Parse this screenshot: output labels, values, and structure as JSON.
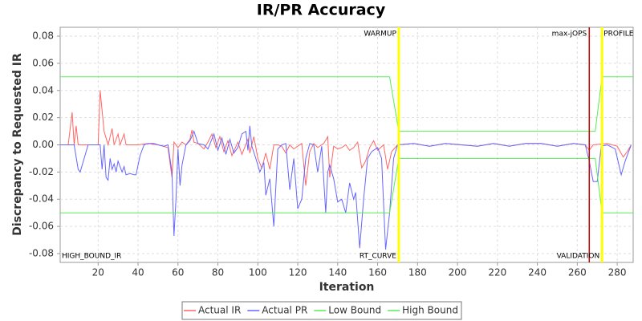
{
  "chart_data": {
    "type": "line",
    "title": "IR/PR Accuracy",
    "x_label": "Iteration",
    "y_label": "Discrepancy to Requested IR",
    "xlim": [
      1,
      288
    ],
    "ylim": [
      -0.0865,
      0.0865
    ],
    "xticks": [
      20,
      40,
      60,
      80,
      100,
      120,
      140,
      160,
      180,
      200,
      220,
      240,
      260,
      280
    ],
    "yticks": [
      -0.08,
      -0.06,
      -0.04,
      -0.02,
      {
        "value": 0,
        "label": "0.00"
      },
      0.02,
      0.04,
      0.06,
      0.08
    ],
    "grid": true,
    "markers": [
      {
        "x": 170.6,
        "color": "#ffff00"
      },
      {
        "x": 266,
        "color": "#cc0000"
      },
      {
        "x": 272.4,
        "color": "#ffff00"
      }
    ],
    "annotations": [
      {
        "text": "WARMUP",
        "x": 170.6,
        "anchor": "top",
        "side": "left"
      },
      {
        "text": "RT_CURVE",
        "x": 170.6,
        "anchor": "bottom",
        "side": "left"
      },
      {
        "text": "max-jOPS",
        "x": 266,
        "anchor": "top",
        "side": "left"
      },
      {
        "text": "VALIDATION",
        "x": 272.4,
        "anchor": "bottom",
        "side": "left"
      },
      {
        "text": "PROFILE",
        "x": 272.4,
        "anchor": "top",
        "side": "right"
      },
      {
        "text": "HIGH_BOUND_IR",
        "x": 1,
        "anchor": "bottom",
        "side": "right"
      }
    ],
    "series": [
      {
        "name": "Actual IR",
        "color": "#ff6666",
        "x": [
          1,
          5,
          7,
          8,
          9,
          10,
          20,
          21,
          23,
          25,
          27,
          28,
          30,
          31,
          33,
          34,
          40,
          45,
          50,
          55,
          57,
          58,
          60,
          62,
          64,
          66,
          67,
          68,
          70,
          73,
          75,
          77,
          79,
          81,
          83,
          85,
          87,
          90,
          92,
          95,
          96,
          98,
          100,
          102,
          104,
          106,
          108,
          110,
          112,
          114,
          116,
          118,
          120,
          122,
          124,
          126,
          128,
          130,
          133,
          135,
          136,
          138,
          140,
          142,
          144,
          146,
          148,
          150,
          152,
          154,
          156,
          158,
          160,
          163,
          165,
          167,
          170,
          178,
          186,
          194,
          202,
          210,
          218,
          226,
          234,
          242,
          250,
          258,
          264,
          266,
          268,
          275,
          280,
          283,
          285,
          287
        ],
        "values": [
          0,
          0,
          0.024,
          0,
          0.014,
          0,
          0,
          0.04,
          0.01,
          0,
          0.012,
          0,
          0.008,
          0,
          0.008,
          0,
          0,
          0.001,
          0,
          -0.002,
          -0.024,
          0.002,
          -0.002,
          0.002,
          0,
          0.004,
          0.011,
          0.002,
          0.001,
          -0.003,
          0.002,
          0.008,
          -0.002,
          0.006,
          -0.005,
          0.003,
          -0.008,
          0.002,
          -0.007,
          0.004,
          -0.006,
          0.006,
          -0.01,
          -0.017,
          -0.006,
          -0.018,
          0,
          0,
          -0.001,
          -0.006,
          0,
          -0.003,
          -0.001,
          0.001,
          -0.03,
          -0.005,
          0.001,
          -0.002,
          0.001,
          0.006,
          -0.024,
          -0.001,
          -0.003,
          -0.002,
          0,
          -0.004,
          -0.002,
          0.002,
          -0.017,
          -0.012,
          -0.002,
          0.003,
          -0.004,
          0,
          -0.018,
          -0.005,
          0,
          0.001,
          -0.001,
          0.001,
          0,
          -0.001,
          0.001,
          -0.001,
          0.001,
          0.001,
          -0.001,
          0.001,
          0,
          -0.004,
          0,
          0.001,
          -0.001,
          -0.009,
          -0.005,
          0
        ]
      },
      {
        "name": "Actual PR",
        "color": "#6666ff",
        "x": [
          1,
          5,
          8,
          10,
          11,
          15,
          20,
          21,
          22,
          23,
          24,
          25,
          26,
          27,
          28,
          29,
          30,
          32,
          33,
          34,
          36,
          38,
          39,
          41,
          43,
          45,
          48,
          50,
          53,
          55,
          57,
          58,
          59,
          60,
          61,
          62,
          64,
          66,
          68,
          70,
          73,
          75,
          78,
          80,
          82,
          84,
          86,
          88,
          90,
          92,
          94,
          95,
          96,
          97,
          99,
          101,
          103,
          104,
          106,
          108,
          110,
          112,
          114,
          116,
          118,
          120,
          122,
          124,
          126,
          128,
          130,
          132,
          134,
          135,
          136,
          138,
          140,
          142,
          144,
          146,
          148,
          149,
          151,
          153,
          155,
          157,
          160,
          162,
          164,
          166,
          168,
          170,
          178,
          186,
          194,
          202,
          210,
          218,
          226,
          234,
          242,
          250,
          258,
          264,
          266,
          268,
          270,
          272,
          275,
          279,
          282,
          284,
          287
        ],
        "values": [
          0,
          0,
          0,
          -0.018,
          -0.02,
          0,
          0,
          0,
          -0.018,
          0,
          -0.024,
          -0.026,
          -0.01,
          -0.018,
          -0.014,
          -0.02,
          -0.012,
          -0.02,
          -0.016,
          -0.022,
          -0.021,
          -0.022,
          -0.022,
          -0.008,
          0,
          0.001,
          0.001,
          0,
          -0.001,
          0,
          -0.02,
          -0.067,
          -0.04,
          -0.003,
          -0.03,
          -0.015,
          0,
          0.003,
          0.01,
          0.001,
          0,
          -0.003,
          0.008,
          -0.004,
          0.005,
          -0.007,
          0.004,
          -0.006,
          -0.002,
          0.008,
          0.01,
          -0.004,
          0.014,
          -0.001,
          -0.01,
          -0.02,
          -0.013,
          -0.037,
          -0.025,
          -0.06,
          -0.003,
          0,
          0.001,
          -0.033,
          -0.01,
          -0.047,
          -0.04,
          -0.01,
          0.001,
          0,
          -0.02,
          -0.001,
          -0.05,
          -0.02,
          -0.015,
          -0.025,
          -0.042,
          -0.04,
          -0.05,
          -0.028,
          -0.04,
          -0.035,
          -0.076,
          -0.04,
          -0.01,
          -0.005,
          -0.002,
          -0.01,
          -0.077,
          -0.05,
          -0.01,
          0,
          0.001,
          -0.001,
          0.001,
          0,
          -0.001,
          0.001,
          -0.001,
          0.001,
          0.001,
          -0.001,
          0.001,
          0,
          -0.012,
          -0.027,
          -0.027,
          -0.001,
          0,
          -0.003,
          -0.022,
          -0.012,
          0
        ]
      },
      {
        "name": "Low Bound",
        "color": "#55ee55",
        "x": [
          1,
          166,
          170.6,
          269,
          272.4,
          288
        ],
        "values": [
          -0.05,
          -0.05,
          -0.01,
          -0.01,
          -0.05,
          -0.05
        ]
      },
      {
        "name": "High Bound",
        "color": "#55ee55",
        "x": [
          1,
          166,
          170.6,
          269,
          272.4,
          288
        ],
        "values": [
          0.05,
          0.05,
          0.01,
          0.01,
          0.05,
          0.05
        ]
      }
    ]
  }
}
